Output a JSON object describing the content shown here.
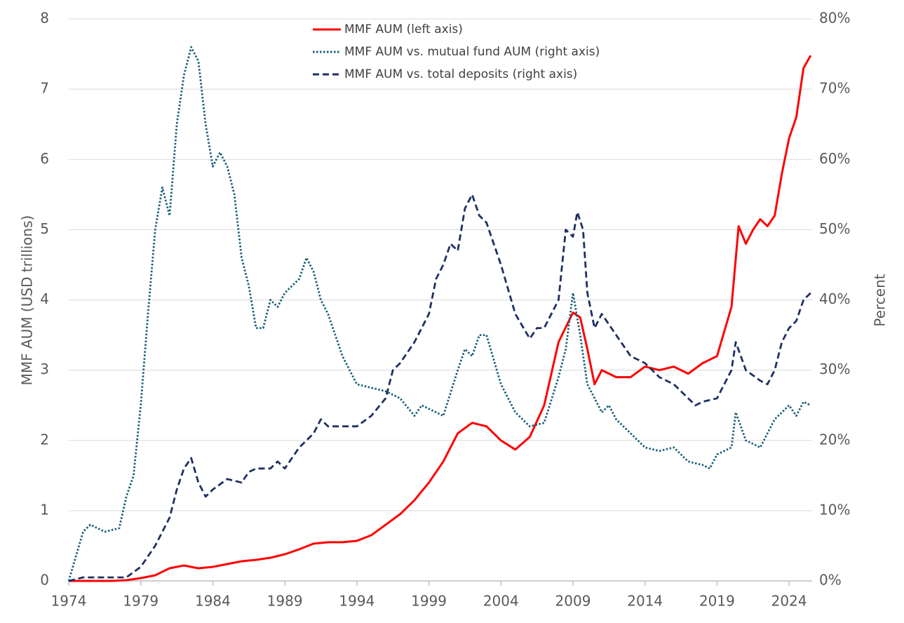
{
  "chart_data": {
    "type": "line",
    "y_label": "MMF AUM (USD trillions)",
    "y2_label": "Percent",
    "xlim": [
      1974,
      2025.6
    ],
    "xticks": [
      1974,
      1979,
      1984,
      1989,
      1994,
      1999,
      2004,
      2009,
      2014,
      2019,
      2024
    ],
    "ylim": [
      0,
      8
    ],
    "yticks": [
      0,
      1,
      2,
      3,
      4,
      5,
      6,
      7,
      8
    ],
    "y2lim": [
      0,
      80
    ],
    "y2ticks": [
      {
        "value": 0,
        "label": "0%"
      },
      {
        "value": 10,
        "label": "10%"
      },
      {
        "value": 20,
        "label": "20%"
      },
      {
        "value": 30,
        "label": "30%"
      },
      {
        "value": 40,
        "label": "40%"
      },
      {
        "value": 50,
        "label": "50%"
      },
      {
        "value": 60,
        "label": "60%"
      },
      {
        "value": 70,
        "label": "70%"
      },
      {
        "value": 80,
        "label": "80%"
      }
    ],
    "grid": true,
    "legend": "top",
    "series": [
      {
        "name": "MMF AUM (left axis)",
        "color": "#ff0000",
        "style": "solid",
        "axis": "y",
        "x": [
          1974,
          1975,
          1976,
          1977,
          1978,
          1979,
          1980,
          1981,
          1982,
          1983,
          1984,
          1985,
          1986,
          1987,
          1988,
          1989,
          1990,
          1991,
          1992,
          1993,
          1994,
          1995,
          1996,
          1997,
          1998,
          1999,
          2000,
          2001,
          2002,
          2003,
          2004,
          2005,
          2006,
          2007,
          2008,
          2009,
          2009.5,
          2010,
          2010.5,
          2011,
          2012,
          2013,
          2014,
          2015,
          2016,
          2017,
          2018,
          2019,
          2020,
          2020.5,
          2021,
          2021.5,
          2022,
          2022.5,
          2023,
          2023.5,
          2024,
          2024.5,
          2025,
          2025.5
        ],
        "values": [
          0,
          0,
          0,
          0,
          0.01,
          0.04,
          0.08,
          0.18,
          0.22,
          0.18,
          0.2,
          0.24,
          0.28,
          0.3,
          0.33,
          0.38,
          0.45,
          0.53,
          0.55,
          0.55,
          0.57,
          0.65,
          0.8,
          0.95,
          1.15,
          1.4,
          1.7,
          2.1,
          2.25,
          2.2,
          2.0,
          1.87,
          2.05,
          2.5,
          3.4,
          3.82,
          3.75,
          3.3,
          2.8,
          3.0,
          2.9,
          2.9,
          3.05,
          3.0,
          3.05,
          2.95,
          3.1,
          3.2,
          3.9,
          5.05,
          4.8,
          5.0,
          5.15,
          5.05,
          5.2,
          5.8,
          6.3,
          6.6,
          7.3,
          7.48
        ]
      },
      {
        "name": "MMF AUM vs. mutual fund AUM (right axis)",
        "color": "#1b6178",
        "style": "dotted",
        "axis": "y2",
        "x": [
          1974,
          1975,
          1975.5,
          1976.5,
          1977.5,
          1978,
          1978.5,
          1979,
          1979.5,
          1980,
          1980.5,
          1981,
          1981.5,
          1982,
          1982.5,
          1983,
          1983.5,
          1984,
          1984.5,
          1985,
          1985.5,
          1986,
          1986.5,
          1987,
          1987.5,
          1988,
          1988.5,
          1989,
          1990,
          1990.5,
          1991,
          1991.5,
          1992,
          1993,
          1994,
          1995,
          1996,
          1997,
          1998,
          1998.5,
          1999,
          2000,
          2001,
          2001.5,
          2002,
          2002.5,
          2003,
          2004,
          2005,
          2006,
          2007,
          2008,
          2008.5,
          2009,
          2009.5,
          2010,
          2011,
          2011.5,
          2012,
          2013,
          2014,
          2015,
          2016,
          2017,
          2018,
          2018.5,
          2019,
          2020,
          2020.3,
          2021,
          2022,
          2023,
          2024,
          2024.5,
          2025,
          2025.5
        ],
        "values": [
          0,
          7,
          8,
          7,
          7.5,
          12,
          15,
          25,
          38,
          50,
          56,
          52,
          65,
          72,
          76,
          74,
          65,
          59,
          61,
          59,
          55,
          46,
          42,
          36,
          36,
          40,
          39,
          41,
          43,
          46,
          44,
          40,
          38,
          32,
          28,
          27.5,
          27,
          26,
          23.5,
          25,
          24.5,
          23.5,
          30,
          33,
          32,
          35,
          35,
          28,
          24,
          22,
          22.5,
          29,
          33,
          41,
          35,
          28,
          24,
          25,
          23,
          21,
          19,
          18.5,
          19,
          17,
          16.5,
          16,
          18,
          19,
          24,
          20,
          19,
          23,
          25,
          23.5,
          25.5,
          25
        ]
      },
      {
        "name": "MMF AUM vs. total deposits (right axis)",
        "color": "#1f3061",
        "style": "dashed",
        "axis": "y2",
        "x": [
          1974,
          1975,
          1978,
          1979,
          1980,
          1980.5,
          1981,
          1981.5,
          1982,
          1982.5,
          1983,
          1983.5,
          1984,
          1985,
          1986,
          1986.5,
          1987,
          1988,
          1988.5,
          1989,
          1990,
          1990.5,
          1991,
          1991.5,
          1992,
          1993,
          1994,
          1995,
          1996,
          1996.5,
          1997,
          1998,
          1999,
          1999.5,
          2000,
          2000.5,
          2001,
          2001.5,
          2002,
          2002.5,
          2003,
          2004,
          2005,
          2006,
          2006.5,
          2007,
          2008,
          2008.5,
          2009,
          2009.3,
          2009.7,
          2010,
          2010.5,
          2011,
          2012,
          2013,
          2014,
          2015,
          2016,
          2017,
          2017.5,
          2018,
          2019,
          2020,
          2020.3,
          2021,
          2022,
          2022.5,
          2023,
          2023.5,
          2024,
          2024.5,
          2025,
          2025.5
        ],
        "values": [
          0,
          0.5,
          0.5,
          2,
          5,
          7,
          9,
          13,
          16,
          17.5,
          14,
          12,
          13,
          14.5,
          14,
          15.5,
          16,
          16,
          17,
          16,
          19,
          20,
          21,
          23,
          22,
          22,
          22,
          23.5,
          26,
          30,
          31,
          34,
          38,
          43,
          45,
          48,
          47,
          53,
          55,
          52,
          51,
          45,
          38,
          34.5,
          36,
          36,
          40,
          50,
          49,
          52.5,
          50,
          41,
          36,
          38,
          35,
          32,
          31,
          29,
          28,
          26,
          25,
          25.5,
          26,
          30,
          34,
          30,
          28.5,
          28,
          30,
          34,
          36,
          37,
          40,
          41
        ]
      }
    ]
  }
}
